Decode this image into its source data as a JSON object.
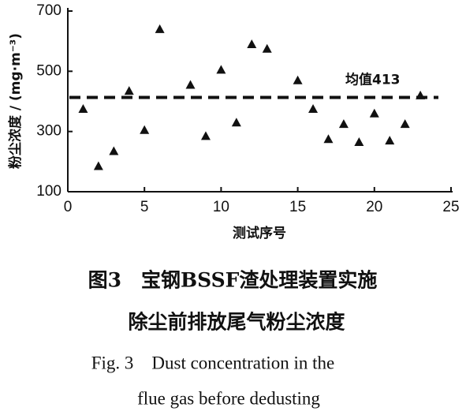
{
  "chart_data": {
    "type": "scatter",
    "x_label": "测试序号",
    "y_label": "粉尘浓度 / (mg·m⁻³)",
    "x": [
      1,
      2,
      3,
      4,
      5,
      6,
      8,
      9,
      10,
      11,
      12,
      13,
      15,
      16,
      17,
      18,
      19,
      20,
      21,
      22,
      23
    ],
    "values": [
      375,
      185,
      235,
      435,
      305,
      640,
      455,
      285,
      505,
      330,
      590,
      575,
      470,
      375,
      275,
      325,
      265,
      360,
      270,
      325,
      420
    ],
    "color": "#111111",
    "xlim": [
      0,
      25
    ],
    "xticks": [
      0,
      5,
      10,
      15,
      20,
      25
    ],
    "ylim": [
      100,
      700
    ],
    "yticks": [
      100,
      300,
      500,
      700
    ],
    "hline": {
      "value": 413,
      "label": "均值413"
    },
    "caption": [
      "图3　宝钢BSSF渣处理装置实施",
      "除尘前排放尾气粉尘浓度",
      "Fig. 3　Dust concentration in the",
      "flue gas before dedusting"
    ]
  }
}
